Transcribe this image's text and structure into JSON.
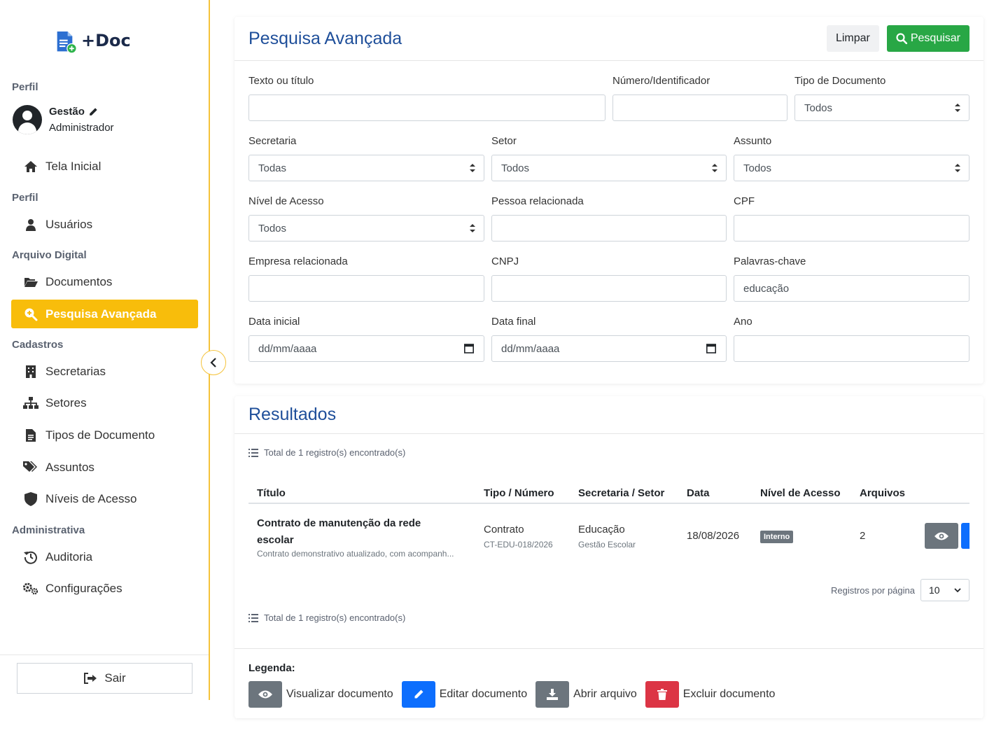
{
  "app": {
    "name": "+Doc"
  },
  "sidebar": {
    "profile_section": "Perfil",
    "user": {
      "name": "Gestão",
      "role": "Administrador"
    },
    "home": "Tela Inicial",
    "perfil_section": "Perfil",
    "users": "Usuários",
    "archive_section": "Arquivo Digital",
    "documents": "Documentos",
    "advanced_search": "Pesquisa Avançada",
    "registrations_section": "Cadastros",
    "secretariats": "Secretarias",
    "sectors": "Setores",
    "doc_types": "Tipos de Documento",
    "subjects": "Assuntos",
    "access_levels": "Níveis de Acesso",
    "admin_section": "Administrativa",
    "audit": "Auditoria",
    "settings": "Configurações",
    "logout": "Sair",
    "accent_color": "#f8bd0b"
  },
  "search": {
    "title": "Pesquisa Avançada",
    "clear_label": "Limpar",
    "search_label": "Pesquisar",
    "fields": {
      "text_label": "Texto ou título",
      "text_value": "",
      "number_label": "Número/Identificador",
      "number_value": "",
      "doc_type_label": "Tipo de Documento",
      "doc_type_value": "Todos",
      "secretariat_label": "Secretaria",
      "secretariat_value": "Todas",
      "sector_label": "Setor",
      "sector_value": "Todos",
      "subject_label": "Assunto",
      "subject_value": "Todos",
      "access_label": "Nível de Acesso",
      "access_value": "Todos",
      "person_label": "Pessoa relacionada",
      "person_value": "",
      "cpf_label": "CPF",
      "cpf_value": "",
      "company_label": "Empresa relacionada",
      "company_value": "",
      "cnpj_label": "CNPJ",
      "cnpj_value": "",
      "keywords_label": "Palavras-chave",
      "keywords_value": "educação",
      "start_date_label": "Data inicial",
      "start_date_value": "dd/mm/aaaa",
      "end_date_label": "Data final",
      "end_date_value": "dd/mm/aaaa",
      "year_label": "Ano",
      "year_value": ""
    }
  },
  "results": {
    "title": "Resultados",
    "total_text": "Total de 1 registro(s) encontrado(s)",
    "columns": [
      "Título",
      "Tipo / Número",
      "Secretaria / Setor",
      "Data",
      "Nível de Acesso",
      "Arquivos"
    ],
    "rows": [
      {
        "title": "Contrato de manutenção da rede escolar",
        "description": "Contrato demonstrativo atualizado, com acompanh...",
        "type": "Contrato",
        "number": "CT-EDU-018/2026",
        "secretariat": "Educação",
        "sector": "Gestão Escolar",
        "date": "18/08/2026",
        "access": "Interno",
        "files": "2"
      }
    ],
    "per_page_label": "Registros por página",
    "per_page_value": "10"
  },
  "legend": {
    "title": "Legenda:",
    "view": "Visualizar documento",
    "edit": "Editar documento",
    "open": "Abrir arquivo",
    "delete": "Excluir documento"
  },
  "colors": {
    "primary": "#1f4f9a",
    "success": "#28a745",
    "secondary": "#6c757d",
    "blue": "#0d6efd",
    "danger": "#dc3545"
  }
}
